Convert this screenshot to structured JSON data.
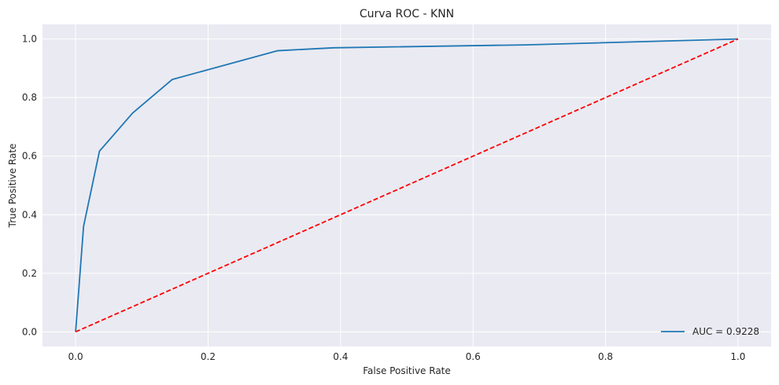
{
  "chart_data": {
    "type": "line",
    "title": "Curva ROC - KNN",
    "xlabel": "False Positive Rate",
    "ylabel": "True Positive Rate",
    "xlim": [
      -0.05,
      1.05
    ],
    "ylim": [
      -0.05,
      1.05
    ],
    "x_ticks": [
      "0.0",
      "0.2",
      "0.4",
      "0.6",
      "0.8",
      "1.0"
    ],
    "y_ticks": [
      "0.0",
      "0.2",
      "0.4",
      "0.6",
      "0.8",
      "1.0"
    ],
    "grid": true,
    "legend_position": "lower-right",
    "series": [
      {
        "name": "AUC = 0.9228",
        "color": "#1f77b4",
        "style": "solid",
        "x": [
          0.0,
          0.012,
          0.036,
          0.086,
          0.146,
          0.305,
          0.39,
          0.68,
          1.0
        ],
        "y": [
          0.0,
          0.36,
          0.617,
          0.747,
          0.862,
          0.96,
          0.97,
          0.98,
          1.0
        ]
      },
      {
        "color": "#ff0000",
        "style": "dashed",
        "x": [
          0.0,
          1.0
        ],
        "y": [
          0.0,
          1.0
        ]
      }
    ],
    "background_color": "#eaeaf2",
    "grid_color": "#ffffff"
  }
}
